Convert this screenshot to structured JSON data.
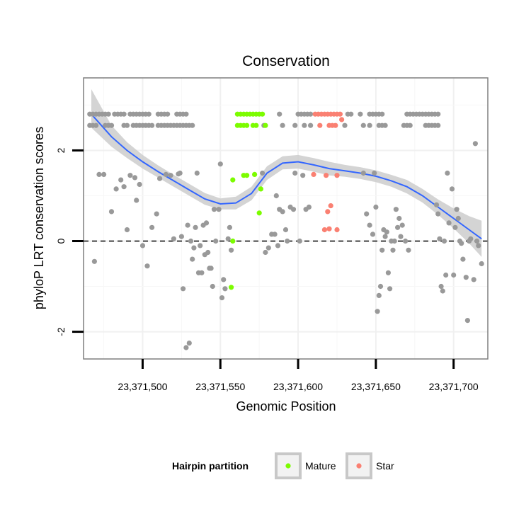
{
  "chart_data": {
    "type": "scatter",
    "title": "Conservation",
    "xlabel": "Genomic Position",
    "ylabel": "phyloP LRT conservation scores",
    "xlim": [
      23371462,
      23371722
    ],
    "ylim": [
      -2.6,
      3.6
    ],
    "x_ticks": [
      23371500,
      23371550,
      23371600,
      23371650,
      23371700
    ],
    "x_tick_labels": [
      "23,371,500",
      "23,371,550",
      "23,371,600",
      "23,371,650",
      "23,371,700"
    ],
    "y_ticks": [
      -2,
      0,
      2
    ],
    "y_tick_labels": [
      "-2",
      "0",
      "2"
    ],
    "reference_line": {
      "y": 0,
      "style": "dashed"
    },
    "grid": true,
    "colors": {
      "other": "#999999",
      "mature": "#7cfc00",
      "star": "#fa8072",
      "smooth": "#3366ff",
      "ribbon": "#cccccc"
    },
    "legend": {
      "title": "Hairpin partition",
      "placement": "bottom",
      "entries": [
        {
          "label": "Mature",
          "color": "#7cfc00"
        },
        {
          "label": "Star",
          "color": "#fa8072"
        }
      ]
    },
    "series": [
      {
        "group": "other",
        "points": [
          [
            23371466,
            2.8
          ],
          [
            23371468,
            2.8
          ],
          [
            23371470,
            2.8
          ],
          [
            23371472,
            2.8
          ],
          [
            23371474,
            2.8
          ],
          [
            23371476,
            2.8
          ],
          [
            23371478,
            2.8
          ],
          [
            23371482,
            2.8
          ],
          [
            23371484,
            2.8
          ],
          [
            23371486,
            2.8
          ],
          [
            23371488,
            2.8
          ],
          [
            23371492,
            2.8
          ],
          [
            23371494,
            2.8
          ],
          [
            23371496,
            2.8
          ],
          [
            23371498,
            2.8
          ],
          [
            23371500,
            2.8
          ],
          [
            23371502,
            2.8
          ],
          [
            23371504,
            2.8
          ],
          [
            23371510,
            2.8
          ],
          [
            23371512,
            2.8
          ],
          [
            23371514,
            2.8
          ],
          [
            23371516,
            2.8
          ],
          [
            23371522,
            2.8
          ],
          [
            23371524,
            2.8
          ],
          [
            23371526,
            2.8
          ],
          [
            23371528,
            2.8
          ],
          [
            23371466,
            2.55
          ],
          [
            23371468,
            2.55
          ],
          [
            23371470,
            2.55
          ],
          [
            23371476,
            2.55
          ],
          [
            23371478,
            2.55
          ],
          [
            23371480,
            2.55
          ],
          [
            23371488,
            2.55
          ],
          [
            23371490,
            2.55
          ],
          [
            23371494,
            2.55
          ],
          [
            23371496,
            2.55
          ],
          [
            23371498,
            2.55
          ],
          [
            23371500,
            2.55
          ],
          [
            23371502,
            2.55
          ],
          [
            23371504,
            2.55
          ],
          [
            23371506,
            2.55
          ],
          [
            23371510,
            2.55
          ],
          [
            23371512,
            2.55
          ],
          [
            23371514,
            2.55
          ],
          [
            23371516,
            2.55
          ],
          [
            23371518,
            2.55
          ],
          [
            23371520,
            2.55
          ],
          [
            23371522,
            2.55
          ],
          [
            23371524,
            2.55
          ],
          [
            23371526,
            2.55
          ],
          [
            23371528,
            2.55
          ],
          [
            23371530,
            2.55
          ],
          [
            23371532,
            2.55
          ],
          [
            23371588,
            2.8
          ],
          [
            23371600,
            2.8
          ],
          [
            23371602,
            2.8
          ],
          [
            23371604,
            2.8
          ],
          [
            23371606,
            2.8
          ],
          [
            23371608,
            2.8
          ],
          [
            23371632,
            2.8
          ],
          [
            23371634,
            2.8
          ],
          [
            23371640,
            2.8
          ],
          [
            23371646,
            2.8
          ],
          [
            23371648,
            2.8
          ],
          [
            23371650,
            2.8
          ],
          [
            23371652,
            2.8
          ],
          [
            23371654,
            2.8
          ],
          [
            23371670,
            2.8
          ],
          [
            23371672,
            2.8
          ],
          [
            23371674,
            2.8
          ],
          [
            23371676,
            2.8
          ],
          [
            23371678,
            2.8
          ],
          [
            23371680,
            2.8
          ],
          [
            23371682,
            2.8
          ],
          [
            23371684,
            2.8
          ],
          [
            23371686,
            2.8
          ],
          [
            23371688,
            2.8
          ],
          [
            23371690,
            2.8
          ],
          [
            23371578,
            2.55
          ],
          [
            23371590,
            2.55
          ],
          [
            23371598,
            2.55
          ],
          [
            23371604,
            2.55
          ],
          [
            23371608,
            2.55
          ],
          [
            23371630,
            2.55
          ],
          [
            23371642,
            2.55
          ],
          [
            23371646,
            2.55
          ],
          [
            23371652,
            2.55
          ],
          [
            23371654,
            2.55
          ],
          [
            23371656,
            2.55
          ],
          [
            23371668,
            2.55
          ],
          [
            23371670,
            2.55
          ],
          [
            23371672,
            2.55
          ],
          [
            23371682,
            2.55
          ],
          [
            23371684,
            2.55
          ],
          [
            23371686,
            2.55
          ],
          [
            23371688,
            2.55
          ],
          [
            23371690,
            2.55
          ],
          [
            23371469,
            -0.45
          ],
          [
            23371472,
            1.47
          ],
          [
            23371475,
            1.47
          ],
          [
            23371480,
            0.65
          ],
          [
            23371483,
            1.15
          ],
          [
            23371486,
            1.35
          ],
          [
            23371488,
            1.2
          ],
          [
            23371490,
            0.25
          ],
          [
            23371492,
            1.45
          ],
          [
            23371495,
            1.4
          ],
          [
            23371496,
            0.9
          ],
          [
            23371498,
            1.25
          ],
          [
            23371500,
            -0.1
          ],
          [
            23371503,
            -0.55
          ],
          [
            23371506,
            0.3
          ],
          [
            23371509,
            0.6
          ],
          [
            23371511,
            1.38
          ],
          [
            23371515,
            1.47
          ],
          [
            23371518,
            1.45
          ],
          [
            23371520,
            0.05
          ],
          [
            23371523,
            1.48
          ],
          [
            23371524,
            1.5
          ],
          [
            23371525,
            0.1
          ],
          [
            23371526,
            -1.05
          ],
          [
            23371528,
            -2.35
          ],
          [
            23371529,
            0.35
          ],
          [
            23371530,
            -2.25
          ],
          [
            23371531,
            0.0
          ],
          [
            23371532,
            -0.4
          ],
          [
            23371533,
            -0.15
          ],
          [
            23371534,
            0.3
          ],
          [
            23371535,
            1.5
          ],
          [
            23371536,
            -0.7
          ],
          [
            23371537,
            -0.1
          ],
          [
            23371538,
            -0.7
          ],
          [
            23371539,
            0.35
          ],
          [
            23371540,
            -0.3
          ],
          [
            23371541,
            0.4
          ],
          [
            23371542,
            -0.25
          ],
          [
            23371543,
            -0.6
          ],
          [
            23371544,
            -0.6
          ],
          [
            23371545,
            -1.0
          ],
          [
            23371546,
            0.7
          ],
          [
            23371547,
            0.0
          ],
          [
            23371549,
            0.7
          ],
          [
            23371550,
            1.7
          ],
          [
            23371551,
            -1.25
          ],
          [
            23371552,
            -0.85
          ],
          [
            23371553,
            -1.05
          ],
          [
            23371555,
            0.05
          ],
          [
            23371556,
            0.3
          ],
          [
            23371557,
            -0.2
          ],
          [
            23371577,
            1.5
          ],
          [
            23371579,
            -0.25
          ],
          [
            23371581,
            -0.15
          ],
          [
            23371583,
            0.15
          ],
          [
            23371585,
            0.15
          ],
          [
            23371586,
            1.0
          ],
          [
            23371587,
            -0.1
          ],
          [
            23371588,
            0.7
          ],
          [
            23371590,
            0.65
          ],
          [
            23371592,
            0.25
          ],
          [
            23371593,
            0.0
          ],
          [
            23371595,
            0.75
          ],
          [
            23371597,
            0.7
          ],
          [
            23371598,
            1.5
          ],
          [
            23371601,
            0.0
          ],
          [
            23371603,
            1.45
          ],
          [
            23371605,
            0.7
          ],
          [
            23371607,
            0.75
          ],
          [
            23371642,
            1.5
          ],
          [
            23371644,
            0.6
          ],
          [
            23371646,
            0.35
          ],
          [
            23371648,
            0.15
          ],
          [
            23371649,
            1.5
          ],
          [
            23371650,
            0.75
          ],
          [
            23371651,
            -1.55
          ],
          [
            23371652,
            -1.2
          ],
          [
            23371653,
            -1.0
          ],
          [
            23371654,
            -0.2
          ],
          [
            23371655,
            0.25
          ],
          [
            23371656,
            0.1
          ],
          [
            23371657,
            0.2
          ],
          [
            23371658,
            -0.7
          ],
          [
            23371659,
            -1.05
          ],
          [
            23371660,
            0.0
          ],
          [
            23371661,
            -0.2
          ],
          [
            23371662,
            0.0
          ],
          [
            23371663,
            0.7
          ],
          [
            23371664,
            0.3
          ],
          [
            23371665,
            0.5
          ],
          [
            23371666,
            0.1
          ],
          [
            23371667,
            0.35
          ],
          [
            23371669,
            0.0
          ],
          [
            23371671,
            -0.2
          ],
          [
            23371689,
            0.8
          ],
          [
            23371690,
            0.6
          ],
          [
            23371691,
            0.05
          ],
          [
            23371692,
            -1.0
          ],
          [
            23371693,
            -1.1
          ],
          [
            23371694,
            0.0
          ],
          [
            23371695,
            -0.75
          ],
          [
            23371696,
            1.5
          ],
          [
            23371697,
            0.4
          ],
          [
            23371699,
            1.15
          ],
          [
            23371700,
            -0.75
          ],
          [
            23371701,
            0.3
          ],
          [
            23371702,
            0.7
          ],
          [
            23371703,
            0.5
          ],
          [
            23371704,
            0.0
          ],
          [
            23371705,
            -0.05
          ],
          [
            23371706,
            -0.4
          ],
          [
            23371708,
            -0.8
          ],
          [
            23371709,
            -1.75
          ],
          [
            23371710,
            0.0
          ],
          [
            23371711,
            0.05
          ],
          [
            23371713,
            -0.85
          ],
          [
            23371714,
            2.15
          ],
          [
            23371715,
            0.0
          ],
          [
            23371716,
            -0.1
          ],
          [
            23371718,
            -0.5
          ]
        ]
      },
      {
        "group": "mature",
        "label": "Mature",
        "points": [
          [
            23371561,
            2.8
          ],
          [
            23371563,
            2.8
          ],
          [
            23371565,
            2.8
          ],
          [
            23371567,
            2.8
          ],
          [
            23371569,
            2.8
          ],
          [
            23371571,
            2.8
          ],
          [
            23371573,
            2.8
          ],
          [
            23371575,
            2.8
          ],
          [
            23371577,
            2.8
          ],
          [
            23371561,
            2.55
          ],
          [
            23371563,
            2.55
          ],
          [
            23371565,
            2.55
          ],
          [
            23371567,
            2.55
          ],
          [
            23371571,
            2.55
          ],
          [
            23371573,
            2.55
          ],
          [
            23371579,
            2.55
          ],
          [
            23371558,
            1.35
          ],
          [
            23371565,
            1.45
          ],
          [
            23371567,
            1.45
          ],
          [
            23371572,
            1.47
          ],
          [
            23371576,
            1.15
          ],
          [
            23371575,
            0.62
          ],
          [
            23371558,
            0.0
          ],
          [
            23371557,
            -1.02
          ]
        ]
      },
      {
        "group": "star",
        "label": "Star",
        "points": [
          [
            23371611,
            2.8
          ],
          [
            23371613,
            2.8
          ],
          [
            23371615,
            2.8
          ],
          [
            23371617,
            2.8
          ],
          [
            23371619,
            2.8
          ],
          [
            23371621,
            2.8
          ],
          [
            23371623,
            2.8
          ],
          [
            23371625,
            2.8
          ],
          [
            23371627,
            2.8
          ],
          [
            23371614,
            2.55
          ],
          [
            23371620,
            2.55
          ],
          [
            23371622,
            2.55
          ],
          [
            23371624,
            2.55
          ],
          [
            23371628,
            2.68
          ],
          [
            23371610,
            1.47
          ],
          [
            23371618,
            1.45
          ],
          [
            23371625,
            1.45
          ],
          [
            23371621,
            0.78
          ],
          [
            23371619,
            0.65
          ],
          [
            23371617,
            0.25
          ],
          [
            23371620,
            0.27
          ],
          [
            23371625,
            0.25
          ]
        ]
      }
    ],
    "smooth_line": {
      "x": [
        23371467,
        23371480,
        23371490,
        23371500,
        23371510,
        23371520,
        23371530,
        23371540,
        23371550,
        23371560,
        23371570,
        23371580,
        23371590,
        23371600,
        23371610,
        23371620,
        23371630,
        23371640,
        23371650,
        23371660,
        23371670,
        23371680,
        23371690,
        23371700,
        23371710,
        23371718
      ],
      "y": [
        2.8,
        2.3,
        2.0,
        1.75,
        1.53,
        1.33,
        1.13,
        0.93,
        0.82,
        0.84,
        1.05,
        1.5,
        1.72,
        1.75,
        1.68,
        1.6,
        1.55,
        1.5,
        1.43,
        1.33,
        1.2,
        1.0,
        0.75,
        0.5,
        0.25,
        0.05
      ],
      "lower": [
        2.5,
        2.08,
        1.83,
        1.6,
        1.4,
        1.2,
        1.0,
        0.8,
        0.7,
        0.7,
        0.9,
        1.35,
        1.58,
        1.6,
        1.53,
        1.45,
        1.42,
        1.37,
        1.3,
        1.2,
        1.05,
        0.85,
        0.58,
        0.28,
        -0.05,
        -0.35
      ],
      "upper": [
        3.35,
        2.55,
        2.18,
        1.9,
        1.67,
        1.46,
        1.26,
        1.06,
        0.94,
        0.98,
        1.2,
        1.65,
        1.87,
        1.9,
        1.83,
        1.75,
        1.68,
        1.63,
        1.56,
        1.46,
        1.35,
        1.15,
        0.92,
        0.72,
        0.55,
        0.45
      ]
    }
  }
}
